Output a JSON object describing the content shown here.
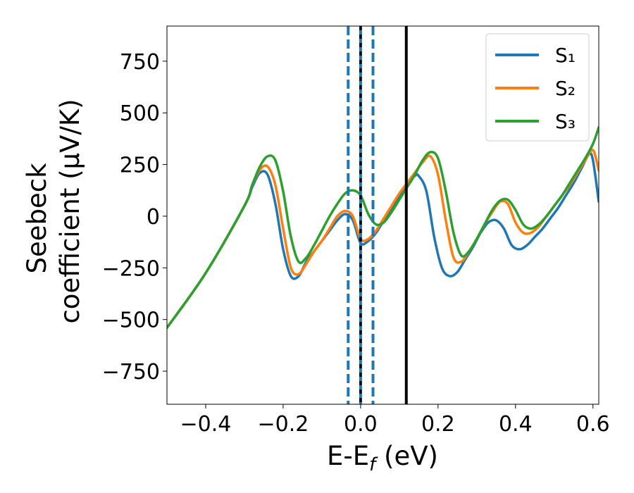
{
  "chart_data": {
    "type": "line",
    "title": "",
    "xlabel": "E-E_f (eV)",
    "ylabel_line1": "Seebeck",
    "ylabel_line2": "coefficient  (μV/K)",
    "xlim": [
      -0.5,
      0.615
    ],
    "ylim": [
      -910,
      920
    ],
    "xticks": [
      -0.4,
      -0.2,
      0.0,
      0.2,
      0.4,
      0.6
    ],
    "xtick_labels": [
      "−0.4",
      "−0.2",
      "0.0",
      "0.2",
      "0.4",
      "0.6"
    ],
    "yticks": [
      -750,
      -500,
      -250,
      0,
      250,
      500,
      750
    ],
    "ytick_labels": [
      "−750",
      "−500",
      "−250",
      "0",
      "250",
      "500",
      "750"
    ],
    "grid": false,
    "legend_position": "top-right",
    "series": [
      {
        "name": "S₁",
        "color": "#1f77b4",
        "x": [
          -0.5,
          -0.4,
          -0.3,
          -0.28,
          -0.26,
          -0.24,
          -0.22,
          -0.2,
          -0.18,
          -0.16,
          -0.14,
          -0.12,
          -0.1,
          -0.08,
          -0.06,
          -0.04,
          -0.02,
          0.0,
          0.02,
          0.04,
          0.06,
          0.08,
          0.1,
          0.12,
          0.14,
          0.15,
          0.17,
          0.19,
          0.21,
          0.23,
          0.25,
          0.27,
          0.29,
          0.31,
          0.33,
          0.35,
          0.37,
          0.39,
          0.41,
          0.43,
          0.45,
          0.47,
          0.49,
          0.51,
          0.53,
          0.55,
          0.57,
          0.59,
          0.6,
          0.615
        ],
        "y": [
          -540,
          -275,
          50,
          140,
          210,
          200,
          60,
          -160,
          -290,
          -290,
          -220,
          -170,
          -120,
          -70,
          -20,
          10,
          -20,
          -130,
          -120,
          -80,
          -20,
          40,
          100,
          155,
          195,
          195,
          120,
          -100,
          -250,
          -290,
          -270,
          -210,
          -150,
          -80,
          -30,
          -20,
          -60,
          -140,
          -160,
          -140,
          -100,
          -60,
          -10,
          40,
          100,
          160,
          230,
          300,
          270,
          70
        ]
      },
      {
        "name": "S₂",
        "color": "#ff7f0e",
        "x": [
          -0.5,
          -0.4,
          -0.3,
          -0.28,
          -0.26,
          -0.24,
          -0.22,
          -0.2,
          -0.18,
          -0.16,
          -0.14,
          -0.12,
          -0.1,
          -0.08,
          -0.06,
          -0.04,
          -0.02,
          0.0,
          0.02,
          0.04,
          0.06,
          0.08,
          0.1,
          0.12,
          0.14,
          0.16,
          0.18,
          0.2,
          0.22,
          0.24,
          0.26,
          0.28,
          0.3,
          0.32,
          0.34,
          0.36,
          0.38,
          0.4,
          0.42,
          0.44,
          0.46,
          0.48,
          0.5,
          0.52,
          0.54,
          0.56,
          0.58,
          0.6,
          0.615
        ],
        "y": [
          -540,
          -275,
          50,
          150,
          225,
          240,
          150,
          -60,
          -250,
          -280,
          -230,
          -170,
          -120,
          -60,
          0,
          25,
          0,
          -110,
          -110,
          -70,
          -10,
          50,
          110,
          160,
          210,
          260,
          290,
          200,
          -20,
          -200,
          -220,
          -170,
          -110,
          -40,
          20,
          70,
          60,
          -30,
          -80,
          -80,
          -50,
          0,
          50,
          100,
          150,
          210,
          270,
          320,
          220
        ]
      },
      {
        "name": "S₃",
        "color": "#2ca02c",
        "x": [
          -0.5,
          -0.4,
          -0.3,
          -0.28,
          -0.26,
          -0.24,
          -0.22,
          -0.2,
          -0.18,
          -0.16,
          -0.14,
          -0.12,
          -0.1,
          -0.08,
          -0.06,
          -0.04,
          -0.02,
          0.0,
          0.02,
          0.04,
          0.06,
          0.08,
          0.1,
          0.12,
          0.14,
          0.16,
          0.18,
          0.2,
          0.22,
          0.24,
          0.26,
          0.28,
          0.3,
          0.32,
          0.34,
          0.36,
          0.38,
          0.4,
          0.42,
          0.44,
          0.46,
          0.48,
          0.5,
          0.52,
          0.54,
          0.56,
          0.58,
          0.6,
          0.615
        ],
        "y": [
          -540,
          -275,
          50,
          150,
          240,
          290,
          270,
          120,
          -100,
          -220,
          -200,
          -140,
          -70,
          0,
          60,
          110,
          125,
          100,
          10,
          -40,
          -30,
          20,
          80,
          140,
          200,
          270,
          310,
          280,
          120,
          -80,
          -190,
          -170,
          -110,
          -40,
          30,
          75,
          80,
          30,
          -40,
          -60,
          -40,
          0,
          50,
          100,
          160,
          220,
          280,
          350,
          430
        ]
      }
    ],
    "vlines": [
      {
        "x": -0.032,
        "color": "#1f77b4",
        "style": "dashed"
      },
      {
        "x": 0.0,
        "color": "#1f77b4",
        "style": "solid"
      },
      {
        "x": 0.0,
        "color": "#000000",
        "style": "dotted"
      },
      {
        "x": 0.032,
        "color": "#1f77b4",
        "style": "dashed"
      },
      {
        "x": 0.118,
        "color": "#000000",
        "style": "solid"
      }
    ]
  }
}
